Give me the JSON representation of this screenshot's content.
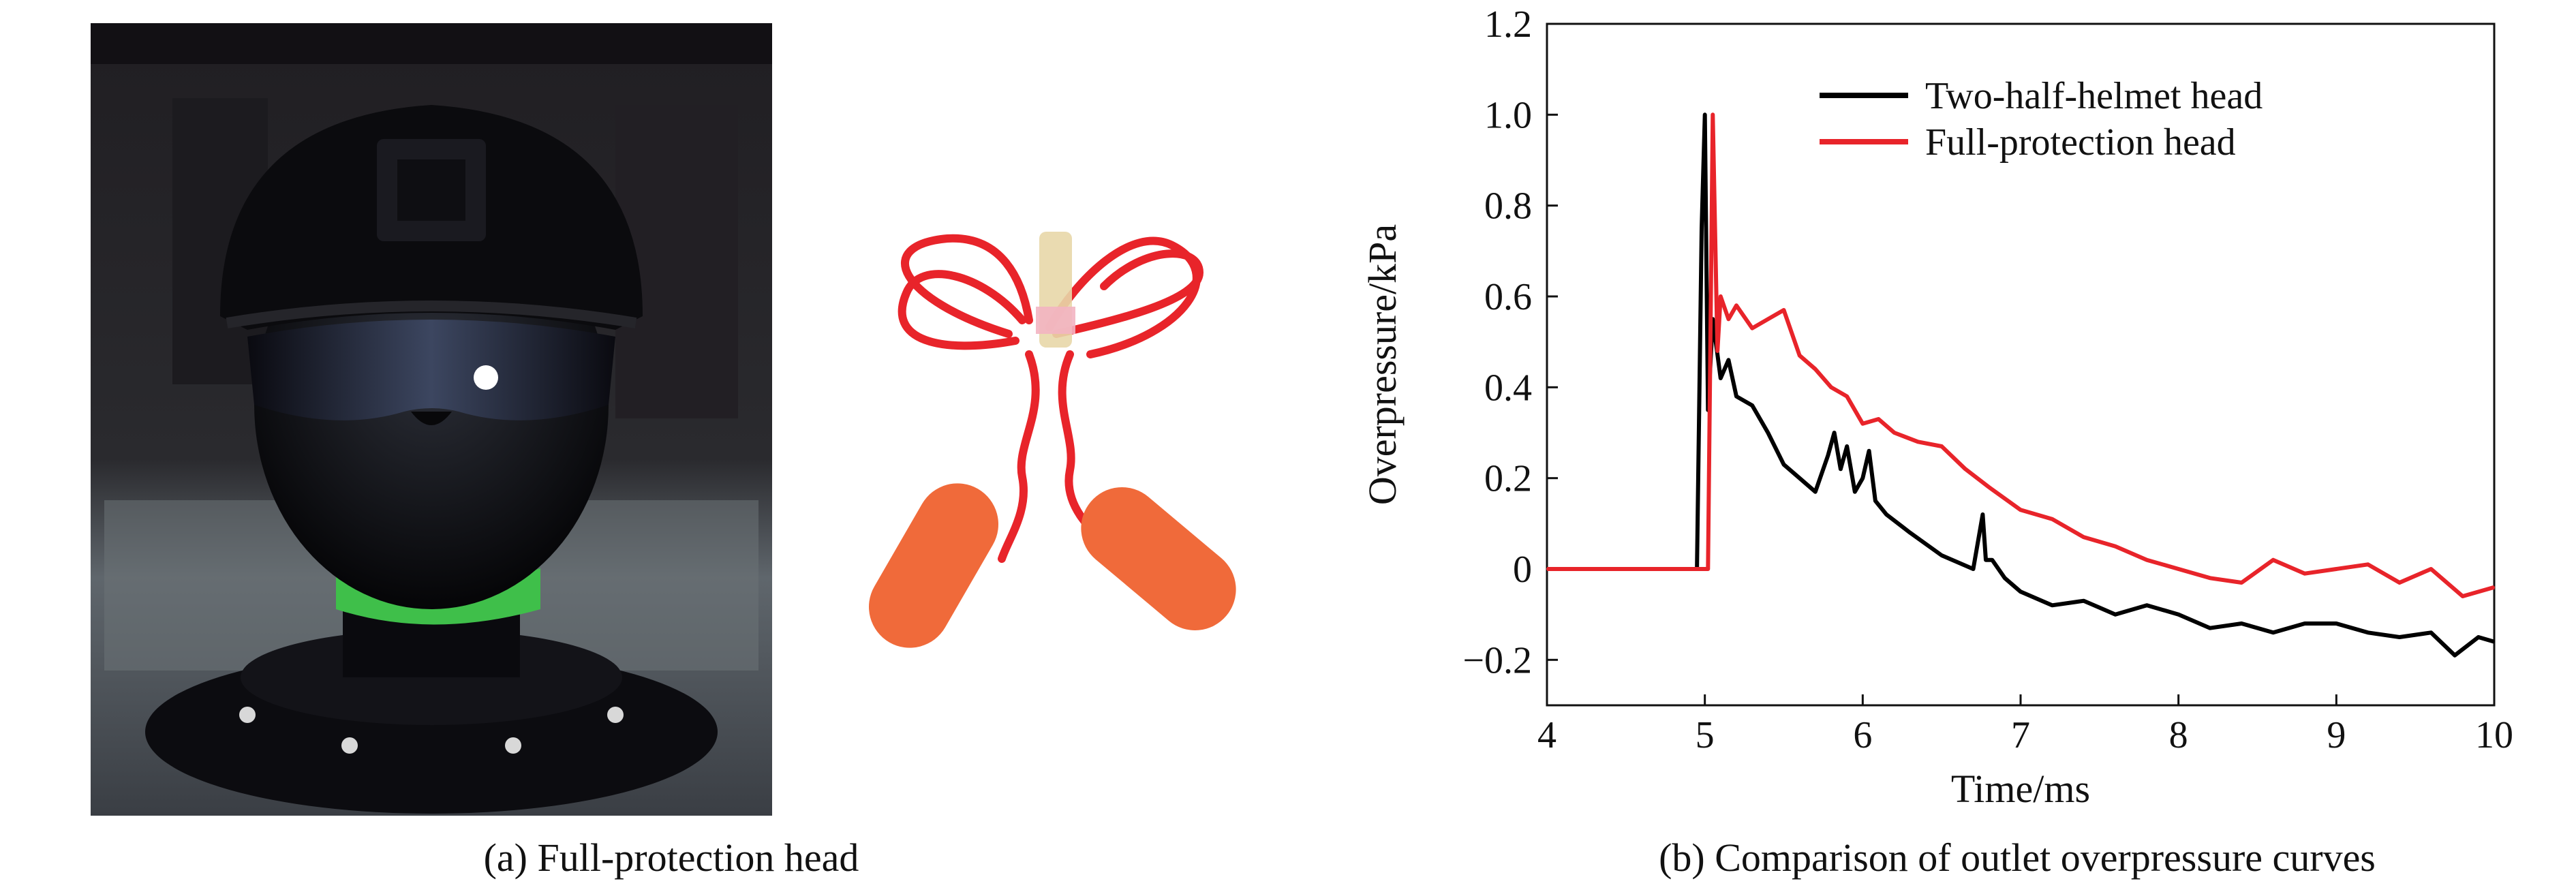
{
  "captions": {
    "a": "(a) Full-protection head",
    "b": "(b) Comparison of outlet overpressure curves"
  },
  "photo": {
    "subject": "mannequin-head-with-helmet-goggles-and-earplugs",
    "colors": {
      "background": "#17151a",
      "helmet": "#0b0b0e",
      "neck_band": "#3fbf4a",
      "earplug": "#f06a3a",
      "cord": "#e8242a"
    }
  },
  "chart_data": {
    "type": "line",
    "xlabel": "Time/ms",
    "ylabel": "Overpressure/kPa",
    "xlim": [
      4,
      10
    ],
    "ylim": [
      -0.3,
      1.2
    ],
    "x_ticks": [
      "4",
      "5",
      "6",
      "7",
      "8",
      "9",
      "10"
    ],
    "y_ticks": [
      "1.2",
      "1.0",
      "0.8",
      "0.6",
      "0.4",
      "0.2",
      "0",
      "−0.2"
    ],
    "x_tick_values": [
      4,
      5,
      6,
      7,
      8,
      9,
      10
    ],
    "y_tick_values": [
      1.2,
      1.0,
      0.8,
      0.6,
      0.4,
      0.2,
      0,
      -0.2
    ],
    "legend": "top-right",
    "grid": false,
    "series": [
      {
        "name": "Two-half-helmet head",
        "color": "#000000",
        "x": [
          4.0,
          4.5,
          4.95,
          4.98,
          5.0,
          5.02,
          5.05,
          5.1,
          5.15,
          5.2,
          5.3,
          5.4,
          5.5,
          5.6,
          5.7,
          5.78,
          5.82,
          5.86,
          5.9,
          5.95,
          6.0,
          6.04,
          6.08,
          6.15,
          6.3,
          6.5,
          6.7,
          6.76,
          6.78,
          6.82,
          6.9,
          7.0,
          7.2,
          7.4,
          7.6,
          7.8,
          8.0,
          8.2,
          8.4,
          8.6,
          8.8,
          9.0,
          9.2,
          9.4,
          9.6,
          9.75,
          9.9,
          10.0
        ],
        "y": [
          0.0,
          0.0,
          0.0,
          0.75,
          1.0,
          0.35,
          0.55,
          0.42,
          0.46,
          0.38,
          0.36,
          0.3,
          0.23,
          0.2,
          0.17,
          0.25,
          0.3,
          0.22,
          0.27,
          0.17,
          0.2,
          0.26,
          0.15,
          0.12,
          0.08,
          0.03,
          0.0,
          0.12,
          0.02,
          0.02,
          -0.02,
          -0.05,
          -0.08,
          -0.07,
          -0.1,
          -0.08,
          -0.1,
          -0.13,
          -0.12,
          -0.14,
          -0.12,
          -0.12,
          -0.14,
          -0.15,
          -0.14,
          -0.19,
          -0.15,
          -0.16
        ]
      },
      {
        "name": "Full-protection head",
        "color": "#e8242a",
        "x": [
          4.0,
          4.5,
          5.02,
          5.05,
          5.08,
          5.1,
          5.15,
          5.2,
          5.3,
          5.4,
          5.5,
          5.6,
          5.7,
          5.8,
          5.9,
          6.0,
          6.1,
          6.2,
          6.35,
          6.5,
          6.65,
          6.8,
          7.0,
          7.2,
          7.4,
          7.6,
          7.8,
          8.0,
          8.2,
          8.4,
          8.6,
          8.8,
          9.0,
          9.2,
          9.4,
          9.6,
          9.8,
          10.0
        ],
        "y": [
          0.0,
          0.0,
          0.0,
          1.0,
          0.48,
          0.6,
          0.55,
          0.58,
          0.53,
          0.55,
          0.57,
          0.47,
          0.44,
          0.4,
          0.38,
          0.32,
          0.33,
          0.3,
          0.28,
          0.27,
          0.22,
          0.18,
          0.13,
          0.11,
          0.07,
          0.05,
          0.02,
          0.0,
          -0.02,
          -0.03,
          0.02,
          -0.01,
          0.0,
          0.01,
          -0.03,
          0.0,
          -0.06,
          -0.04
        ]
      }
    ]
  }
}
